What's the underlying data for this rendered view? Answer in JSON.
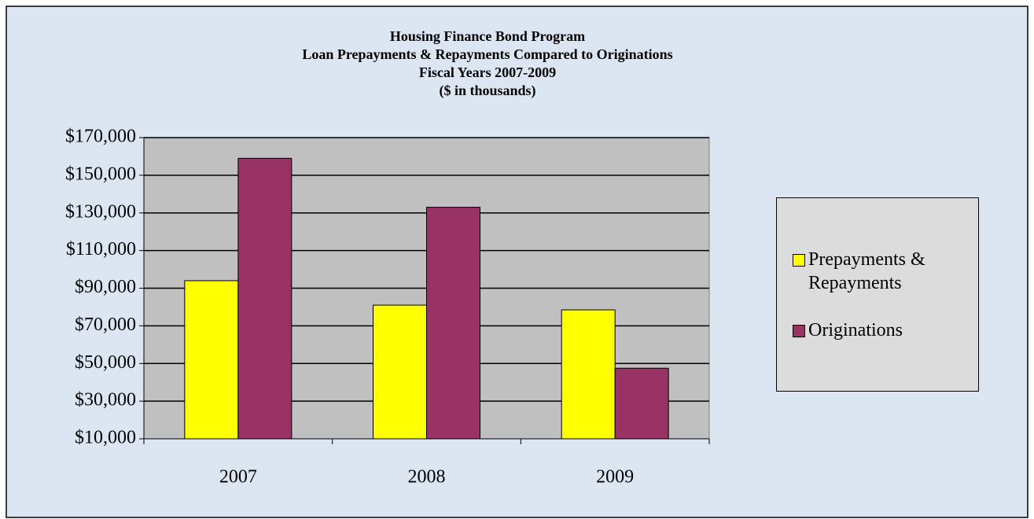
{
  "chart_data": {
    "type": "bar",
    "title": [
      "Housing Finance Bond Program",
      "Loan Prepayments & Repayments Compared to Originations",
      "Fiscal Years 2007-2009",
      "($ in thousands)"
    ],
    "categories": [
      "2007",
      "2008",
      "2009"
    ],
    "series": [
      {
        "name": "Prepayments & Repayments",
        "color": "#ffff00",
        "values": [
          94000,
          81000,
          78500
        ]
      },
      {
        "name": "Originations",
        "color": "#993366",
        "values": [
          159000,
          133000,
          47500
        ]
      }
    ],
    "ylim": [
      10000,
      170000
    ],
    "yticks": [
      {
        "value": 10000,
        "label": "$10,000"
      },
      {
        "value": 30000,
        "label": "$30,000"
      },
      {
        "value": 50000,
        "label": "$50,000"
      },
      {
        "value": 70000,
        "label": "$70,000"
      },
      {
        "value": 90000,
        "label": "$90,000"
      },
      {
        "value": 110000,
        "label": "$110,000"
      },
      {
        "value": 130000,
        "label": "$130,000"
      },
      {
        "value": 150000,
        "label": "$150,000"
      },
      {
        "value": 170000,
        "label": "$170,000"
      }
    ],
    "grid": true,
    "legend_position": "right"
  }
}
